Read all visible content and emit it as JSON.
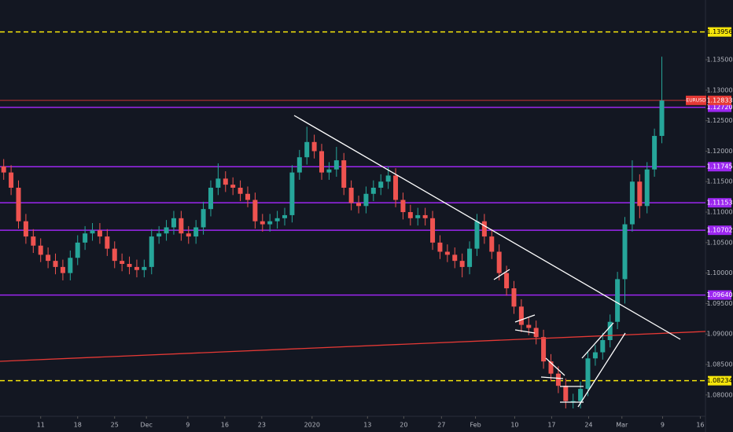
{
  "chart_data": {
    "type": "candlestick",
    "series": [
      {
        "name": "EURUSD",
        "up_color": "#26a69a",
        "down_color": "#ef5350",
        "open": [
          1.1175,
          1.1165,
          1.114,
          1.1085,
          1.106,
          1.1045,
          1.103,
          1.102,
          1.101,
          1.1,
          1.1025,
          1.105,
          1.1065,
          1.107,
          1.106,
          1.104,
          1.102,
          1.1015,
          1.101,
          1.1005,
          1.101,
          1.106,
          1.1065,
          1.1075,
          1.109,
          1.1065,
          1.106,
          1.1075,
          1.1105,
          1.114,
          1.1155,
          1.1145,
          1.114,
          1.113,
          1.112,
          1.1085,
          1.108,
          1.1085,
          1.109,
          1.1095,
          1.1165,
          1.119,
          1.1215,
          1.12,
          1.1165,
          1.117,
          1.1185,
          1.114,
          1.1115,
          1.111,
          1.113,
          1.114,
          1.115,
          1.116,
          1.112,
          1.11,
          1.109,
          1.1095,
          1.109,
          1.105,
          1.1035,
          1.103,
          1.102,
          1.101,
          1.104,
          1.1085,
          1.106,
          1.1035,
          1.1,
          1.0975,
          1.0945,
          1.0915,
          1.091,
          1.0895,
          1.0855,
          1.0835,
          1.0815,
          1.079,
          1.079,
          1.081,
          1.086,
          1.087,
          1.089,
          1.092,
          1.099,
          1.108,
          1.115,
          1.111,
          1.117,
          1.1225
        ],
        "high": [
          1.1187,
          1.1177,
          1.1152,
          1.1097,
          1.1072,
          1.1057,
          1.1042,
          1.1032,
          1.1022,
          1.1037,
          1.1062,
          1.1077,
          1.1082,
          1.1082,
          1.1072,
          1.1052,
          1.1032,
          1.1027,
          1.1022,
          1.1022,
          1.1072,
          1.1077,
          1.1087,
          1.1102,
          1.1102,
          1.1077,
          1.1087,
          1.1117,
          1.1152,
          1.118,
          1.1167,
          1.1157,
          1.1152,
          1.1142,
          1.1132,
          1.1097,
          1.1097,
          1.1102,
          1.1107,
          1.1177,
          1.1202,
          1.124,
          1.1227,
          1.1212,
          1.1182,
          1.1207,
          1.1197,
          1.1152,
          1.1127,
          1.1142,
          1.1152,
          1.1162,
          1.1175,
          1.1172,
          1.1132,
          1.1112,
          1.1107,
          1.1107,
          1.1102,
          1.1062,
          1.1047,
          1.1042,
          1.1032,
          1.1052,
          1.1097,
          1.1097,
          1.1072,
          1.1047,
          1.1012,
          1.0987,
          1.0957,
          1.0927,
          1.0922,
          1.0907,
          1.0867,
          1.0847,
          1.0827,
          1.0802,
          1.0822,
          1.0872,
          1.0882,
          1.0902,
          1.0932,
          1.1002,
          1.1092,
          1.1185,
          1.1162,
          1.1182,
          1.1237,
          1.1355
        ],
        "low": [
          1.1153,
          1.1128,
          1.1073,
          1.1048,
          1.1033,
          1.1018,
          1.1008,
          1.0998,
          1.0988,
          1.0988,
          1.1013,
          1.1038,
          1.1053,
          1.1048,
          1.1028,
          1.1008,
          1.1003,
          1.0998,
          1.0993,
          1.0993,
          1.0998,
          1.1048,
          1.1053,
          1.1063,
          1.1053,
          1.1048,
          1.1048,
          1.1063,
          1.1093,
          1.1128,
          1.1133,
          1.1128,
          1.1118,
          1.1108,
          1.1073,
          1.1068,
          1.1068,
          1.1073,
          1.1078,
          1.1083,
          1.1153,
          1.1178,
          1.1188,
          1.1153,
          1.1153,
          1.1158,
          1.1128,
          1.1103,
          1.1098,
          1.1098,
          1.1118,
          1.1128,
          1.1138,
          1.1108,
          1.1088,
          1.1078,
          1.1078,
          1.1078,
          1.1038,
          1.1023,
          1.1018,
          1.1008,
          1.0993,
          1.0998,
          1.1028,
          1.1048,
          1.1023,
          1.0988,
          1.0963,
          1.0933,
          1.0903,
          1.0898,
          1.0883,
          1.0843,
          1.0823,
          1.0803,
          1.0778,
          1.0778,
          1.0778,
          1.0798,
          1.0848,
          1.0858,
          1.0878,
          1.0908,
          1.095,
          1.1068,
          1.109,
          1.1098,
          1.1158,
          1.1213
        ],
        "close": [
          1.1165,
          1.114,
          1.1085,
          1.106,
          1.1045,
          1.103,
          1.102,
          1.101,
          1.1,
          1.1025,
          1.105,
          1.1065,
          1.107,
          1.106,
          1.104,
          1.102,
          1.1015,
          1.101,
          1.1005,
          1.101,
          1.106,
          1.1065,
          1.1075,
          1.109,
          1.1065,
          1.106,
          1.1075,
          1.1105,
          1.114,
          1.1155,
          1.1145,
          1.114,
          1.113,
          1.112,
          1.1085,
          1.108,
          1.1085,
          1.109,
          1.1095,
          1.1165,
          1.119,
          1.1215,
          1.12,
          1.1165,
          1.117,
          1.1185,
          1.114,
          1.1115,
          1.111,
          1.113,
          1.114,
          1.115,
          1.116,
          1.112,
          1.11,
          1.109,
          1.1095,
          1.109,
          1.105,
          1.1035,
          1.103,
          1.102,
          1.101,
          1.104,
          1.1085,
          1.106,
          1.1035,
          1.1,
          1.0975,
          1.0945,
          1.0915,
          1.091,
          1.0895,
          1.0855,
          1.0835,
          1.0815,
          1.079,
          1.079,
          1.081,
          1.086,
          1.087,
          1.089,
          1.092,
          1.099,
          1.108,
          1.115,
          1.111,
          1.117,
          1.1225,
          1.1283
        ]
      }
    ],
    "ylim": [
      1.0765,
      1.1448
    ],
    "yticks": [
      {
        "value": 1.08,
        "label": "1.08000"
      },
      {
        "value": 1.085,
        "label": "1.08500"
      },
      {
        "value": 1.09,
        "label": "1.09000"
      },
      {
        "value": 1.095,
        "label": "1.09500"
      },
      {
        "value": 1.1,
        "label": "1.10000"
      },
      {
        "value": 1.105,
        "label": "1.10500"
      },
      {
        "value": 1.11,
        "label": "1.11000"
      },
      {
        "value": 1.115,
        "label": "1.11500"
      },
      {
        "value": 1.12,
        "label": "1.12000"
      },
      {
        "value": 1.125,
        "label": "1.12500"
      },
      {
        "value": 1.13,
        "label": "1.13000"
      },
      {
        "value": 1.135,
        "label": "1.13500"
      }
    ],
    "xlim": [
      -0.5,
      94.9
    ],
    "xticks": [
      {
        "value": 5,
        "label": "11"
      },
      {
        "value": 10,
        "label": "18"
      },
      {
        "value": 15,
        "label": "25"
      },
      {
        "value": 19.3,
        "label": "Dec"
      },
      {
        "value": 24.9,
        "label": "9"
      },
      {
        "value": 29.9,
        "label": "16"
      },
      {
        "value": 34.9,
        "label": "23"
      },
      {
        "value": 41.7,
        "label": "2020"
      },
      {
        "value": 49.2,
        "label": "13"
      },
      {
        "value": 54.1,
        "label": "20"
      },
      {
        "value": 59.2,
        "label": "27"
      },
      {
        "value": 63.8,
        "label": "Feb"
      },
      {
        "value": 69.1,
        "label": "10"
      },
      {
        "value": 74.1,
        "label": "17"
      },
      {
        "value": 79.1,
        "label": "24"
      },
      {
        "value": 83.6,
        "label": "Mar"
      },
      {
        "value": 89.1,
        "label": "9"
      },
      {
        "value": 94.2,
        "label": "16"
      }
    ],
    "levels": [
      {
        "value": 1.13956,
        "label": "1.13956",
        "color": "#f5e50b",
        "style": "dashed"
      },
      {
        "value": 1.1272,
        "label": "1.12720",
        "color": "#9c27f0",
        "style": "solid"
      },
      {
        "value": 1.11745,
        "label": "1.11745",
        "color": "#9c27f0",
        "style": "solid"
      },
      {
        "value": 1.11153,
        "label": "1.11153",
        "color": "#9c27f0",
        "style": "solid"
      },
      {
        "value": 1.10702,
        "label": "1.10702",
        "color": "#9c27f0",
        "style": "solid"
      },
      {
        "value": 1.0964,
        "label": "1.09640",
        "color": "#9c27f0",
        "style": "solid"
      },
      {
        "value": 1.08234,
        "label": "1.08234",
        "color": "#f5e50b",
        "style": "dashed"
      }
    ],
    "price_line": {
      "value": 1.12833,
      "label": "1.12833",
      "color": "#e53935"
    }
  }
}
